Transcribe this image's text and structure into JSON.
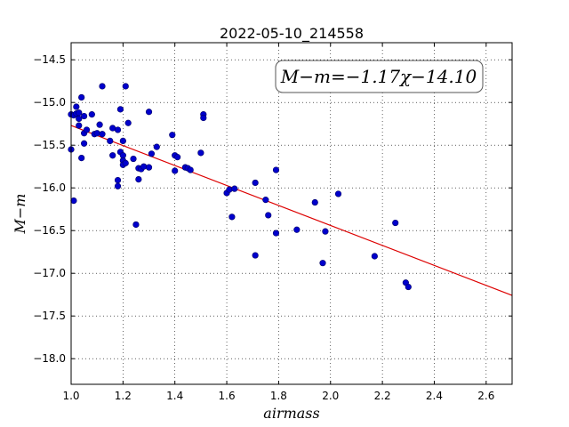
{
  "chart_data": {
    "type": "scatter",
    "title": "2022-05-10_214558",
    "xlabel": "airmass",
    "ylabel": "M−m",
    "xlim": [
      1.0,
      2.7
    ],
    "ylim": [
      -18.3,
      -14.3
    ],
    "y_inverted": true,
    "grid": true,
    "grid_style": "dotted",
    "x_ticks": [
      "1.0",
      "1.2",
      "1.4",
      "1.6",
      "1.8",
      "2.0",
      "2.2",
      "2.4",
      "2.6"
    ],
    "y_ticks": [
      "−14.5",
      "−15.0",
      "−15.5",
      "−16.0",
      "−16.5",
      "−17.0",
      "−17.5",
      "−18.0"
    ],
    "annotation": "M−m=−1.17χ−14.10",
    "annotation_position": "top-right",
    "colors": {
      "points": "#0000cc",
      "point_edge": "#000066",
      "fit_line": "#dd0000"
    },
    "fit": {
      "slope": -1.17,
      "intercept": -14.1,
      "x_range": [
        1.0,
        2.7
      ]
    },
    "points": [
      [
        1.0,
        -15.14
      ],
      [
        1.0,
        -15.55
      ],
      [
        1.01,
        -16.15
      ],
      [
        1.01,
        -15.15
      ],
      [
        1.02,
        -15.05
      ],
      [
        1.02,
        -15.13
      ],
      [
        1.03,
        -15.19
      ],
      [
        1.03,
        -15.27
      ],
      [
        1.03,
        -15.12
      ],
      [
        1.04,
        -15.65
      ],
      [
        1.04,
        -14.94
      ],
      [
        1.05,
        -15.36
      ],
      [
        1.05,
        -15.48
      ],
      [
        1.05,
        -15.16
      ],
      [
        1.06,
        -15.32
      ],
      [
        1.08,
        -15.14
      ],
      [
        1.09,
        -15.37
      ],
      [
        1.1,
        -15.36
      ],
      [
        1.11,
        -15.26
      ],
      [
        1.12,
        -15.37
      ],
      [
        1.12,
        -14.81
      ],
      [
        1.15,
        -15.45
      ],
      [
        1.16,
        -15.62
      ],
      [
        1.16,
        -15.3
      ],
      [
        1.18,
        -15.32
      ],
      [
        1.18,
        -15.91
      ],
      [
        1.18,
        -15.98
      ],
      [
        1.19,
        -15.08
      ],
      [
        1.19,
        -15.58
      ],
      [
        1.2,
        -15.62
      ],
      [
        1.2,
        -15.45
      ],
      [
        1.2,
        -15.68
      ],
      [
        1.2,
        -15.73
      ],
      [
        1.21,
        -15.71
      ],
      [
        1.21,
        -14.81
      ],
      [
        1.22,
        -15.24
      ],
      [
        1.24,
        -15.66
      ],
      [
        1.25,
        -16.43
      ],
      [
        1.26,
        -15.77
      ],
      [
        1.26,
        -15.9
      ],
      [
        1.27,
        -15.78
      ],
      [
        1.28,
        -15.75
      ],
      [
        1.3,
        -15.76
      ],
      [
        1.3,
        -15.11
      ],
      [
        1.31,
        -15.6
      ],
      [
        1.33,
        -15.52
      ],
      [
        1.39,
        -15.38
      ],
      [
        1.4,
        -15.8
      ],
      [
        1.4,
        -15.62
      ],
      [
        1.41,
        -15.64
      ],
      [
        1.44,
        -15.76
      ],
      [
        1.45,
        -15.77
      ],
      [
        1.46,
        -15.79
      ],
      [
        1.5,
        -15.59
      ],
      [
        1.51,
        -15.14
      ],
      [
        1.51,
        -15.18
      ],
      [
        1.6,
        -16.06
      ],
      [
        1.61,
        -16.02
      ],
      [
        1.62,
        -16.34
      ],
      [
        1.63,
        -16.01
      ],
      [
        1.71,
        -15.94
      ],
      [
        1.71,
        -16.79
      ],
      [
        1.75,
        -16.14
      ],
      [
        1.76,
        -16.32
      ],
      [
        1.79,
        -16.53
      ],
      [
        1.79,
        -15.79
      ],
      [
        1.87,
        -16.49
      ],
      [
        1.94,
        -16.17
      ],
      [
        1.97,
        -16.88
      ],
      [
        1.98,
        -16.51
      ],
      [
        2.03,
        -16.07
      ],
      [
        2.17,
        -16.8
      ],
      [
        2.25,
        -16.41
      ],
      [
        2.29,
        -17.11
      ],
      [
        2.3,
        -17.16
      ]
    ]
  }
}
